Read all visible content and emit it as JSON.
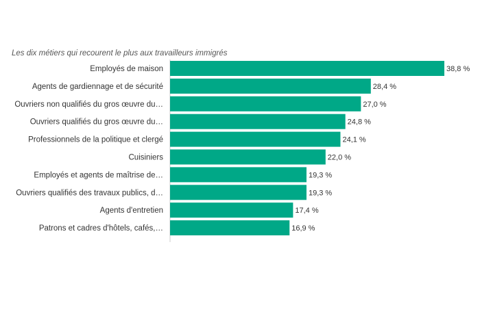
{
  "chart_data": {
    "type": "bar",
    "orientation": "horizontal",
    "subtitle": "Les dix métiers qui recourent le plus aux travailleurs immigrés",
    "categories": [
      "Employés de maison",
      "Agents de gardiennage et de sécurité",
      "Ouvriers non qualifiés du gros œuvre du…",
      "Ouvriers qualifiés du gros œuvre du…",
      "Professionnels de la politique et clergé",
      "Cuisiniers",
      "Employés et agents de maîtrise de…",
      "Ouvriers qualifiés des travaux publics, d…",
      "Agents d'entretien",
      "Patrons et cadres d'hôtels, cafés,…"
    ],
    "values": [
      38.8,
      28.4,
      27.0,
      24.8,
      24.1,
      22.0,
      19.3,
      19.3,
      17.4,
      16.9
    ],
    "value_labels": [
      "38,8 %",
      "28,4 %",
      "27,0 %",
      "24,8 %",
      "24,1 %",
      "22,0 %",
      "19,3 %",
      "19,3 %",
      "17,4 %",
      "16,9 %"
    ],
    "xlim": [
      0,
      38.8
    ],
    "grid": false,
    "legend": "none",
    "colors": {
      "bar": "#00a887",
      "axis": "#cccccc"
    }
  }
}
